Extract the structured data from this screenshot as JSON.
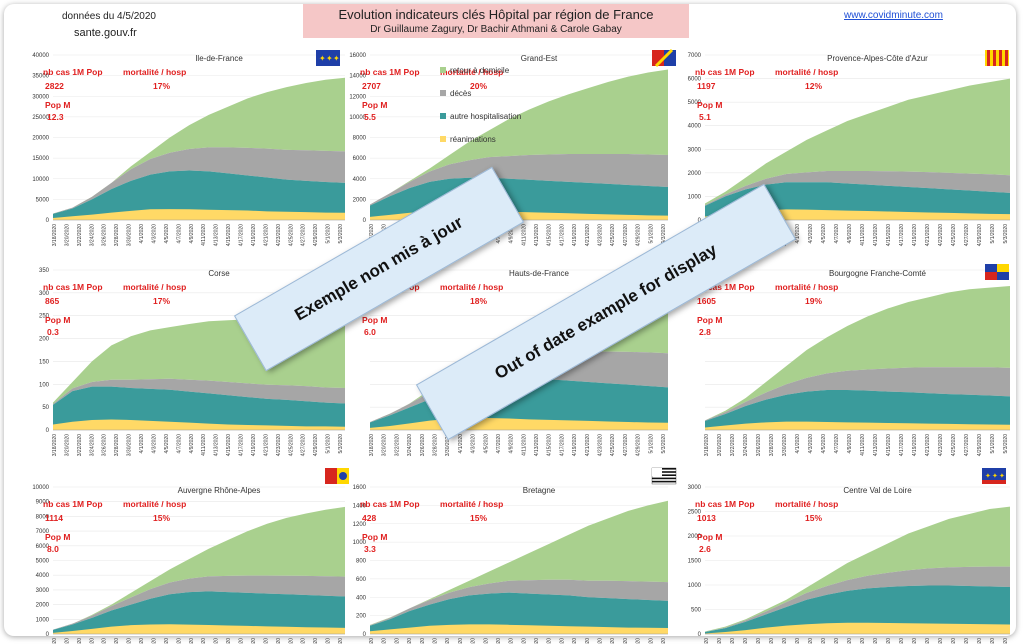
{
  "header": {
    "date_text": "données du 4/5/2020",
    "source_text": "sante.gouv.fr",
    "title": "Evolution indicateurs clés Hôpital par région de France",
    "authors": "Dr Guillaume Zagury, Dr Bachir Athmani & Carole Gabay",
    "website": "www.covidminute.com"
  },
  "labels": {
    "cases": "nb cas 1M Pop",
    "mortality": "mortalité / hosp",
    "pop": "Pop M"
  },
  "banners": {
    "fr": "Exemple non mis à jour",
    "en": "Out of date example for display"
  },
  "colors": {
    "home": "#a9d08e",
    "deaths": "#a6a6a6",
    "hosp": "#3a9b9b",
    "icu": "#ffd966",
    "red": "#e02020",
    "grid": "#e8e8e8"
  },
  "legend": [
    {
      "name": "retour à domicile",
      "color": "#a9d08e"
    },
    {
      "name": "décès",
      "color": "#a6a6a6"
    },
    {
      "name": "autre hospitalisation",
      "color": "#3a9b9b"
    },
    {
      "name": "réanimations",
      "color": "#ffd966"
    }
  ],
  "x_ticks": [
    "3/18/2020",
    "3/20/2020",
    "3/22/2020",
    "3/24/2020",
    "3/26/2020",
    "3/28/2020",
    "3/30/2020",
    "4/1/2020",
    "4/3/2020",
    "4/5/2020",
    "4/7/2020",
    "4/9/2020",
    "4/11/2020",
    "4/13/2020",
    "4/15/2020",
    "4/17/2020",
    "4/19/2020",
    "4/21/2020",
    "4/23/2020",
    "4/25/2020",
    "4/27/2020",
    "4/29/2020",
    "5/1/2020",
    "5/3/2020"
  ],
  "chart_data": [
    {
      "type": "area",
      "region": "Ile-de-France",
      "cases": "2822",
      "mortality": "17%",
      "pop": "12.3",
      "ylim": [
        0,
        40000
      ],
      "y_ticks": [
        "0",
        "5000",
        "10000",
        "15000",
        "20000",
        "25000",
        "30000",
        "35000",
        "40000"
      ],
      "totals": [
        1500,
        3000,
        5500,
        9000,
        13000,
        16500,
        20000,
        23000,
        25500,
        27500,
        29500,
        31000,
        32200,
        33200,
        34000,
        34500
      ],
      "hosp": [
        1500,
        2800,
        5000,
        7500,
        9500,
        11000,
        11800,
        12000,
        11800,
        11300,
        10800,
        10300,
        9800,
        9500,
        9200,
        9000
      ],
      "icu": [
        500,
        900,
        1300,
        1800,
        2200,
        2600,
        2650,
        2600,
        2500,
        2400,
        2300,
        2100,
        2000,
        1900,
        1800,
        1750
      ],
      "deaths": [
        50,
        200,
        600,
        1500,
        2800,
        3800,
        4500,
        5200,
        5800,
        6300,
        6700,
        7000,
        7200,
        7400,
        7550,
        7650
      ]
    },
    {
      "type": "area",
      "region": "Grand-Est",
      "cases": "2707",
      "mortality": "20%",
      "pop": "5.5",
      "ylim": [
        0,
        16000
      ],
      "y_ticks": [
        "0",
        "2000",
        "4000",
        "6000",
        "8000",
        "10000",
        "12000",
        "14000",
        "16000"
      ],
      "totals": [
        1500,
        2600,
        3800,
        5000,
        6300,
        7600,
        8700,
        9800,
        10700,
        11500,
        12200,
        12800,
        13400,
        13900,
        14300,
        14600
      ],
      "hosp": [
        1400,
        2300,
        3100,
        3700,
        4000,
        4100,
        4100,
        4000,
        3900,
        3800,
        3700,
        3600,
        3500,
        3400,
        3300,
        3200
      ],
      "icu": [
        300,
        500,
        700,
        850,
        900,
        900,
        850,
        800,
        750,
        700,
        650,
        600,
        550,
        500,
        450,
        420
      ],
      "deaths": [
        100,
        300,
        600,
        1000,
        1400,
        1700,
        2000,
        2200,
        2400,
        2550,
        2700,
        2800,
        2900,
        3000,
        3050,
        3100
      ]
    },
    {
      "type": "area",
      "region": "Provence-Alpes-Côte d'Azur",
      "cases": "1197",
      "mortality": "12%",
      "pop": "5.1",
      "ylim": [
        0,
        7000
      ],
      "y_ticks": [
        "0",
        "1000",
        "2000",
        "3000",
        "4000",
        "5000",
        "6000",
        "7000"
      ],
      "totals": [
        700,
        1200,
        1800,
        2400,
        2900,
        3400,
        3800,
        4200,
        4500,
        4800,
        5100,
        5300,
        5500,
        5700,
        5850,
        6000
      ],
      "hosp": [
        600,
        1000,
        1300,
        1500,
        1600,
        1600,
        1600,
        1550,
        1500,
        1450,
        1400,
        1350,
        1300,
        1250,
        1200,
        1150
      ],
      "icu": [
        150,
        250,
        350,
        420,
        450,
        440,
        420,
        400,
        380,
        360,
        340,
        320,
        300,
        280,
        260,
        250
      ],
      "deaths": [
        30,
        80,
        150,
        250,
        350,
        420,
        480,
        530,
        580,
        620,
        650,
        680,
        700,
        720,
        740,
        750
      ]
    },
    {
      "type": "area",
      "region": "Corse",
      "cases": "865",
      "mortality": "17%",
      "pop": "0.3",
      "ylim": [
        0,
        350
      ],
      "y_ticks": [
        "0",
        "50",
        "100",
        "150",
        "200",
        "250",
        "300",
        "350"
      ],
      "totals": [
        60,
        105,
        150,
        185,
        205,
        218,
        225,
        232,
        238,
        240,
        242,
        244,
        245,
        246,
        247,
        248
      ],
      "hosp": [
        55,
        85,
        95,
        95,
        92,
        90,
        88,
        84,
        80,
        76,
        72,
        68,
        66,
        63,
        60,
        58
      ],
      "icu": [
        12,
        18,
        22,
        23,
        22,
        20,
        18,
        16,
        14,
        12,
        11,
        10,
        9,
        8,
        8,
        7
      ],
      "deaths": [
        2,
        6,
        10,
        15,
        18,
        21,
        24,
        26,
        28,
        29,
        30,
        31,
        32,
        33,
        33,
        34
      ]
    },
    {
      "type": "area",
      "region": "Hauts-de-France",
      "cases": "",
      "mortality": "18%",
      "pop": "6.0",
      "ylim": [
        0,
        6000
      ],
      "y_ticks": [],
      "totals": [
        300,
        600,
        1000,
        1500,
        2100,
        2700,
        3200,
        3600,
        3950,
        4250,
        4500,
        4700,
        4850,
        4950,
        5000,
        5050
      ],
      "hosp": [
        280,
        550,
        850,
        1150,
        1450,
        1700,
        1850,
        1950,
        1950,
        1900,
        1850,
        1800,
        1750,
        1700,
        1650,
        1600
      ],
      "icu": [
        80,
        150,
        250,
        350,
        420,
        450,
        450,
        430,
        400,
        380,
        360,
        340,
        320,
        300,
        280,
        270
      ],
      "deaths": [
        20,
        60,
        140,
        260,
        400,
        550,
        700,
        820,
        920,
        1000,
        1080,
        1140,
        1190,
        1230,
        1260,
        1280
      ]
    },
    {
      "type": "area",
      "region": "Bourgogne Franche-Comté",
      "cases": "1605",
      "mortality": "19%",
      "pop": "2.8",
      "ylim": [
        0,
        5000
      ],
      "y_ticks": [],
      "totals": [
        300,
        600,
        1000,
        1500,
        2000,
        2500,
        2900,
        3250,
        3550,
        3800,
        4000,
        4150,
        4300,
        4400,
        4450,
        4500
      ],
      "hosp": [
        280,
        500,
        750,
        950,
        1100,
        1200,
        1250,
        1250,
        1230,
        1200,
        1180,
        1150,
        1120,
        1100,
        1080,
        1050
      ],
      "icu": [
        80,
        140,
        200,
        240,
        260,
        260,
        250,
        240,
        230,
        220,
        210,
        200,
        190,
        180,
        170,
        165
      ],
      "deaths": [
        20,
        60,
        130,
        220,
        330,
        430,
        520,
        600,
        660,
        720,
        770,
        810,
        840,
        860,
        880,
        890
      ]
    },
    {
      "type": "area",
      "region": "Auvergne Rhône-Alpes",
      "cases": "1114",
      "mortality": "15%",
      "pop": "8.0",
      "ylim": [
        0,
        10000
      ],
      "y_ticks": [
        "0",
        "1000",
        "2000",
        "3000",
        "4000",
        "5000",
        "6000",
        "7000",
        "8000",
        "9000",
        "10000"
      ],
      "totals": [
        300,
        700,
        1300,
        2000,
        2800,
        3600,
        4400,
        5100,
        5800,
        6400,
        7000,
        7500,
        7900,
        8200,
        8450,
        8650
      ],
      "hosp": [
        280,
        650,
        1100,
        1600,
        2000,
        2400,
        2700,
        2850,
        2900,
        2850,
        2800,
        2750,
        2700,
        2650,
        2600,
        2550
      ],
      "icu": [
        80,
        200,
        350,
        500,
        600,
        650,
        660,
        640,
        610,
        580,
        550,
        520,
        490,
        460,
        440,
        420
      ],
      "deaths": [
        20,
        60,
        150,
        300,
        480,
        650,
        800,
        920,
        1020,
        1100,
        1170,
        1220,
        1260,
        1300,
        1330,
        1350
      ]
    },
    {
      "type": "area",
      "region": "Bretagne",
      "cases": "428",
      "mortality": "15%",
      "pop": "3.3",
      "ylim": [
        0,
        1600
      ],
      "y_ticks": [
        "0",
        "200",
        "400",
        "600",
        "800",
        "1000",
        "1200",
        "1400",
        "1600"
      ],
      "totals": [
        100,
        180,
        280,
        380,
        480,
        580,
        680,
        780,
        880,
        980,
        1080,
        1180,
        1260,
        1340,
        1400,
        1450
      ],
      "hosp": [
        90,
        160,
        250,
        320,
        380,
        420,
        440,
        450,
        440,
        430,
        420,
        400,
        390,
        380,
        370,
        360
      ],
      "icu": [
        30,
        50,
        70,
        90,
        100,
        105,
        105,
        100,
        95,
        90,
        85,
        80,
        75,
        70,
        68,
        65
      ],
      "deaths": [
        5,
        15,
        30,
        50,
        70,
        90,
        110,
        130,
        145,
        160,
        170,
        180,
        190,
        195,
        200,
        205
      ]
    },
    {
      "type": "area",
      "region": "Centre Val de Loire",
      "cases": "1013",
      "mortality": "15%",
      "pop": "2.6",
      "ylim": [
        0,
        3000
      ],
      "y_ticks": [
        "0",
        "500",
        "1000",
        "1500",
        "2000",
        "2500",
        "3000"
      ],
      "totals": [
        50,
        150,
        300,
        500,
        700,
        950,
        1200,
        1450,
        1650,
        1850,
        2050,
        2200,
        2350,
        2450,
        2550,
        2600
      ],
      "hosp": [
        40,
        120,
        250,
        400,
        550,
        700,
        800,
        880,
        930,
        960,
        980,
        990,
        990,
        980,
        970,
        960
      ],
      "icu": [
        10,
        40,
        80,
        130,
        170,
        200,
        220,
        230,
        230,
        225,
        220,
        215,
        210,
        205,
        200,
        195
      ],
      "deaths": [
        2,
        10,
        30,
        60,
        100,
        140,
        180,
        220,
        260,
        290,
        320,
        350,
        370,
        390,
        405,
        415
      ]
    }
  ]
}
